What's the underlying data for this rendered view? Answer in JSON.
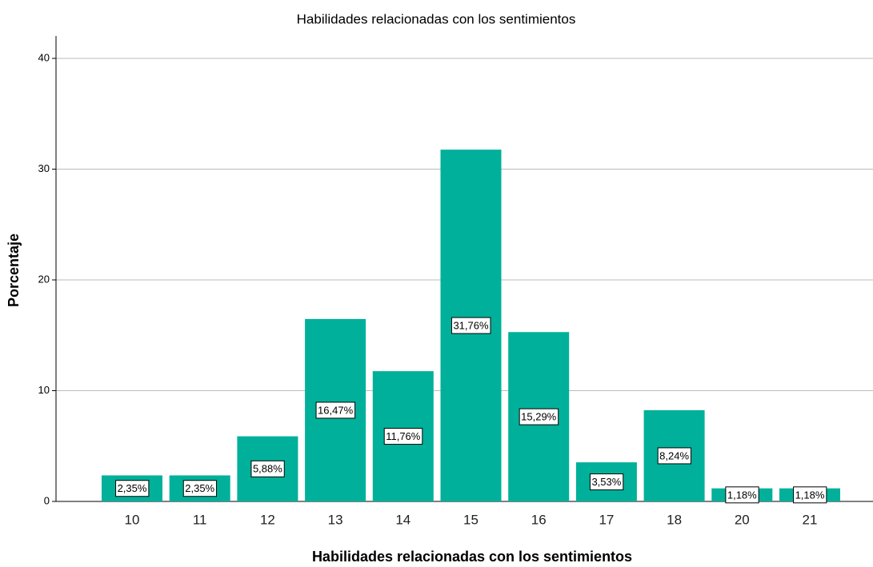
{
  "chart_data": {
    "type": "bar",
    "title": "Habilidades relacionadas con los sentimientos",
    "x_label": "Habilidades relacionadas con los sentimientos",
    "y_label": "Porcentaje",
    "categories": [
      "10",
      "11",
      "12",
      "13",
      "14",
      "15",
      "16",
      "17",
      "18",
      "20",
      "21"
    ],
    "values": [
      2.35,
      2.35,
      5.88,
      16.47,
      11.76,
      31.76,
      15.29,
      3.53,
      8.24,
      1.18,
      1.18
    ],
    "value_labels": [
      "2,35%",
      "2,35%",
      "5,88%",
      "16,47%",
      "11,76%",
      "31,76%",
      "15,29%",
      "3,53%",
      "8,24%",
      "1,18%",
      "1,18%"
    ],
    "color": "#00b09a",
    "ylim": [
      0,
      40
    ],
    "yticks": [
      0,
      10,
      20,
      30,
      40
    ],
    "grid": true
  }
}
